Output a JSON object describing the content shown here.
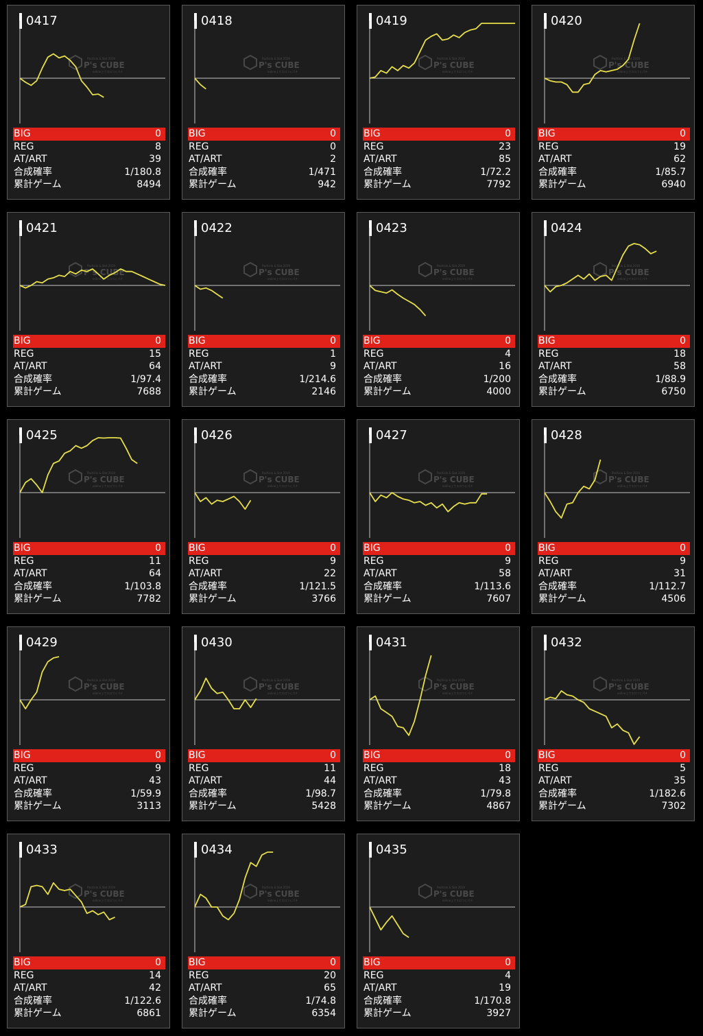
{
  "labels": {
    "big": "BIG",
    "reg": "REG",
    "atart": "AT/ART",
    "rate": "合成確率",
    "games": "累計ゲーム"
  },
  "watermark": {
    "brand": "P's CUBE",
    "top_line": "Pachislo & Slot 2019",
    "bottom_line": "online上でスロつくパチ"
  },
  "colors": {
    "card_bg": "#1d1d1d",
    "big_bar": "#e0221a",
    "graph_line": "#e7e04a",
    "axis": "#c8c8c8"
  },
  "machines": [
    {
      "id": "0417",
      "big": "0",
      "reg": "8",
      "atart": "39",
      "rate": "1/180.8",
      "games": "8494",
      "series": [
        0,
        -320,
        -560,
        -200,
        800,
        1660,
        1920,
        1600,
        1750,
        1400,
        900,
        -200,
        -700,
        -1300,
        -1250,
        -1500
      ]
    },
    {
      "id": "0418",
      "big": "0",
      "reg": "0",
      "atart": "2",
      "rate": "1/471",
      "games": "942",
      "series": [
        0,
        -500,
        -850
      ]
    },
    {
      "id": "0419",
      "big": "0",
      "reg": "23",
      "atart": "85",
      "rate": "1/72.2",
      "games": "7792",
      "series": [
        0,
        100,
        600,
        400,
        900,
        600,
        1000,
        800,
        1200,
        2100,
        3000,
        3300,
        3500,
        3000,
        3100,
        3400,
        3200,
        3600,
        3800,
        3900,
        4600,
        4500,
        4700,
        4400,
        4600,
        5000,
        5500
      ]
    },
    {
      "id": "0420",
      "big": "0",
      "reg": "19",
      "atart": "62",
      "rate": "1/85.7",
      "games": "6940",
      "series": [
        0,
        -200,
        -300,
        -300,
        -500,
        -1100,
        -1100,
        -500,
        -400,
        300,
        600,
        500,
        600,
        700,
        1000,
        1500,
        3000,
        5400
      ]
    },
    {
      "id": "0421",
      "big": "0",
      "reg": "15",
      "atart": "64",
      "rate": "1/97.4",
      "games": "7688",
      "series": [
        0,
        -200,
        0,
        300,
        200,
        500,
        600,
        800,
        700,
        1100,
        900,
        1200,
        1100,
        1300,
        900,
        500,
        800,
        1000,
        1300,
        1100,
        1100,
        900,
        700,
        500,
        300,
        100,
        0
      ]
    },
    {
      "id": "0422",
      "big": "0",
      "reg": "1",
      "atart": "9",
      "rate": "1/214.6",
      "games": "2146",
      "series": [
        0,
        -300,
        -200,
        -400,
        -700,
        -1000
      ]
    },
    {
      "id": "0423",
      "big": "0",
      "reg": "4",
      "atart": "16",
      "rate": "1/200",
      "games": "4000",
      "series": [
        0,
        -400,
        -500,
        -600,
        -350,
        -700,
        -1000,
        -1250,
        -1500,
        -1900,
        -2400
      ]
    },
    {
      "id": "0424",
      "big": "0",
      "reg": "18",
      "atart": "58",
      "rate": "1/88.9",
      "games": "6750",
      "series": [
        0,
        -500,
        -100,
        0,
        200,
        500,
        800,
        500,
        900,
        400,
        700,
        800,
        400,
        1400,
        2400,
        3100,
        3300,
        3200,
        2900,
        2500,
        2700
      ]
    },
    {
      "id": "0425",
      "big": "0",
      "reg": "11",
      "atart": "64",
      "rate": "1/103.8",
      "games": "7782",
      "series": [
        0,
        800,
        1100,
        600,
        0,
        1400,
        2300,
        2500,
        3100,
        3300,
        3700,
        3500,
        3700,
        4100,
        4400,
        4300,
        4500,
        4600,
        4300,
        3500,
        2600,
        2300
      ]
    },
    {
      "id": "0426",
      "big": "0",
      "reg": "9",
      "atart": "22",
      "rate": "1/121.5",
      "games": "3766",
      "series": [
        0,
        -700,
        -400,
        -900,
        -600,
        -700,
        -500,
        -300,
        -700,
        -1300,
        -600
      ]
    },
    {
      "id": "0427",
      "big": "0",
      "reg": "9",
      "atart": "58",
      "rate": "1/113.6",
      "games": "7607",
      "series": [
        0,
        -700,
        -200,
        -400,
        0,
        -300,
        -500,
        -600,
        -800,
        -700,
        -1000,
        -800,
        -1200,
        -900,
        -1500,
        -1100,
        -800,
        -900,
        -800,
        -800,
        -100,
        -100
      ]
    },
    {
      "id": "0428",
      "big": "0",
      "reg": "9",
      "atart": "31",
      "rate": "1/112.7",
      "games": "4506",
      "series": [
        0,
        -700,
        -1500,
        -2000,
        -900,
        -800,
        0,
        500,
        300,
        1000,
        2600
      ]
    },
    {
      "id": "0429",
      "big": "0",
      "reg": "9",
      "atart": "43",
      "rate": "1/59.9",
      "games": "3113",
      "series": [
        0,
        -700,
        0,
        600,
        2200,
        3000,
        3300,
        3400
      ]
    },
    {
      "id": "0430",
      "big": "0",
      "reg": "11",
      "atart": "44",
      "rate": "1/98.7",
      "games": "5428",
      "series": [
        0,
        700,
        1700,
        900,
        500,
        600,
        0,
        -700,
        -700,
        0,
        -600,
        100
      ]
    },
    {
      "id": "0431",
      "big": "0",
      "reg": "18",
      "atart": "43",
      "rate": "1/79.8",
      "games": "4867",
      "series": [
        0,
        300,
        -700,
        -1000,
        -1300,
        -2100,
        -2200,
        -2800,
        -1700,
        0,
        1900,
        3500
      ]
    },
    {
      "id": "0432",
      "big": "0",
      "reg": "5",
      "atart": "35",
      "rate": "1/182.6",
      "games": "7302",
      "series": [
        0,
        200,
        100,
        700,
        400,
        300,
        0,
        -200,
        -700,
        -900,
        -1100,
        -1300,
        -2200,
        -1900,
        -2400,
        -2600,
        -3500,
        -2900
      ]
    },
    {
      "id": "0433",
      "big": "0",
      "reg": "14",
      "atart": "42",
      "rate": "1/122.6",
      "games": "6861",
      "series": [
        0,
        200,
        1600,
        1700,
        1600,
        1000,
        1900,
        1400,
        1300,
        1400,
        900,
        400,
        -500,
        -300,
        -600,
        -400,
        -1000,
        -800
      ]
    },
    {
      "id": "0434",
      "big": "0",
      "reg": "20",
      "atart": "65",
      "rate": "1/74.8",
      "games": "6354",
      "series": [
        0,
        1000,
        700,
        0,
        0,
        -700,
        -1000,
        -500,
        600,
        2300,
        3500,
        3200,
        4100,
        4700,
        4400
      ]
    },
    {
      "id": "0435",
      "big": "0",
      "reg": "4",
      "atart": "19",
      "rate": "1/170.8",
      "games": "3927",
      "series": [
        0,
        -900,
        -1800,
        -1200,
        -700,
        -1400,
        -2100,
        -2400
      ]
    }
  ]
}
